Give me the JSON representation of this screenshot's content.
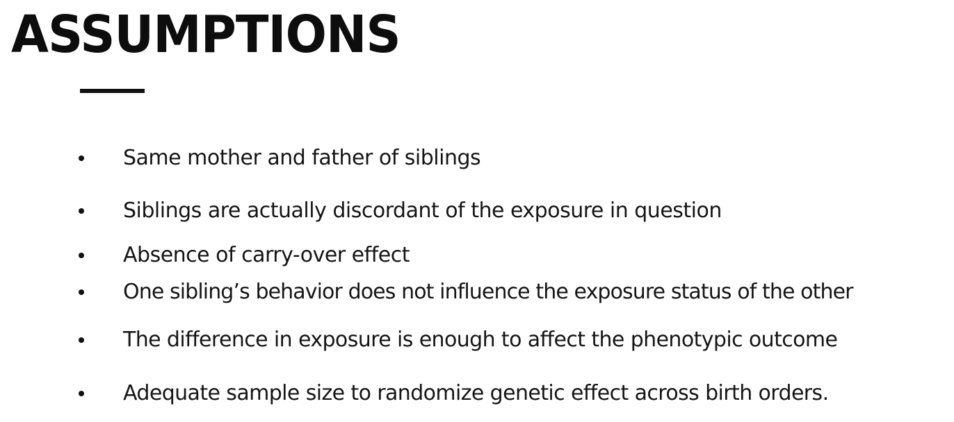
{
  "slide": {
    "title": "ASSUMPTIONS",
    "bullets": [
      "Same mother and father of siblings",
      "Siblings are actually discordant of the exposure in question",
      "Absence of carry-over effect",
      "One sibling’s behavior does not influence the exposure status of the other",
      "The difference in exposure is enough to affect the phenotypic outcome",
      "Adequate sample size to randomize genetic effect across birth orders."
    ]
  }
}
